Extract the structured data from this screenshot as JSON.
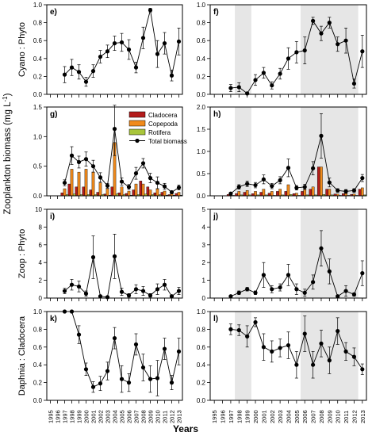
{
  "figure": {
    "xlabel": "Years",
    "years": [
      "1995",
      "1996",
      "1997",
      "1998",
      "1999",
      "2000",
      "2001",
      "2002",
      "2003",
      "2004",
      "2005",
      "2006",
      "2007",
      "2008",
      "2009",
      "2010",
      "2011",
      "2012",
      "2013"
    ],
    "colors": {
      "line": "#000000",
      "point": "#000000",
      "shade": "#e6e6e6",
      "cladocera": "#b31b1b",
      "copepoda": "#f08a1c",
      "rotifera": "#a8c53a"
    }
  },
  "chart_data": [
    {
      "id": "e",
      "panel_label": "e)",
      "type": "line",
      "ylabel": "Cyano : Phyto",
      "ylim": [
        0,
        1.0
      ],
      "yticks": [
        0.0,
        0.2,
        0.4,
        0.6,
        0.8,
        1.0
      ],
      "ytick_labels": [
        "0.0",
        "0.2",
        "0.4",
        "0.6",
        "0.8",
        "1.0"
      ],
      "shaded_years": [],
      "x": [
        1997,
        1998,
        1999,
        2000,
        2001,
        2002,
        2003,
        2004,
        2005,
        2006,
        2007,
        2008,
        2009,
        2010,
        2011,
        2012,
        2013
      ],
      "y": [
        0.22,
        0.3,
        0.25,
        0.14,
        0.26,
        0.42,
        0.48,
        0.57,
        0.58,
        0.5,
        0.3,
        0.63,
        0.94,
        0.45,
        0.57,
        0.21,
        0.59
      ],
      "err": [
        0.09,
        0.09,
        0.08,
        0.05,
        0.07,
        0.07,
        0.07,
        0.08,
        0.1,
        0.11,
        0.06,
        0.12,
        0.02,
        0.15,
        0.12,
        0.06,
        0.15
      ]
    },
    {
      "id": "f",
      "panel_label": "f)",
      "type": "line",
      "ylabel": "",
      "ylim": [
        0,
        1.0
      ],
      "yticks": [
        0.0,
        0.2,
        0.4,
        0.6,
        0.8,
        1.0
      ],
      "ytick_labels": [
        "0.0",
        "0.2",
        "0.4",
        "0.6",
        "0.8",
        "1.0"
      ],
      "shaded_years": [
        [
          1997.5,
          1999.5
        ],
        [
          2005.5,
          2012.5
        ]
      ],
      "x": [
        1997,
        1998,
        1999,
        2000,
        2001,
        2002,
        2003,
        2004,
        2005,
        2006,
        2007,
        2008,
        2009,
        2010,
        2011,
        2012,
        2013
      ],
      "y": [
        0.07,
        0.08,
        0.01,
        0.16,
        0.24,
        0.1,
        0.23,
        0.4,
        0.47,
        0.49,
        0.82,
        0.68,
        0.8,
        0.56,
        0.6,
        0.12,
        0.48
      ],
      "err": [
        0.04,
        0.05,
        0.01,
        0.06,
        0.06,
        0.04,
        0.06,
        0.12,
        0.12,
        0.15,
        0.04,
        0.08,
        0.06,
        0.08,
        0.14,
        0.05,
        0.18
      ]
    },
    {
      "id": "g",
      "panel_label": "g)",
      "type": "bar",
      "ylabel": "",
      "ylim": [
        0,
        1.5
      ],
      "yticks": [
        0.0,
        0.5,
        1.0,
        1.5
      ],
      "ytick_labels": [
        "0.0",
        "0.5",
        "1.0",
        "1.5"
      ],
      "shaded_years": [],
      "legend": [
        "Cladocera",
        "Copepoda",
        "Rotifera",
        "Total biomass"
      ],
      "x": [
        1997,
        1998,
        1999,
        2000,
        2001,
        2002,
        2003,
        2004,
        2005,
        2006,
        2007,
        2008,
        2009,
        2010,
        2011,
        2012,
        2013
      ],
      "series": [
        {
          "name": "Cladocera",
          "color": "#b31b1b",
          "values": [
            0.05,
            0.2,
            0.15,
            0.15,
            0.1,
            0.06,
            0.03,
            0.15,
            0.05,
            0.04,
            0.1,
            0.25,
            0.15,
            0.05,
            0.06,
            0.02,
            0.04
          ]
        },
        {
          "name": "Copepoda",
          "color": "#f08a1c",
          "values": [
            0.12,
            0.45,
            0.4,
            0.45,
            0.4,
            0.22,
            0.12,
            0.9,
            0.15,
            0.08,
            0.2,
            0.2,
            0.1,
            0.12,
            0.08,
            0.04,
            0.06
          ]
        },
        {
          "name": "Rotifera",
          "color": "#a8c53a",
          "values": [
            0.02,
            0.03,
            0.02,
            0.02,
            0.02,
            0.02,
            0.01,
            0.03,
            0.02,
            0.01,
            0.02,
            0.03,
            0.02,
            0.02,
            0.01,
            0.01,
            0.01
          ]
        }
      ],
      "total": {
        "name": "Total biomass",
        "y": [
          0.22,
          0.68,
          0.57,
          0.62,
          0.5,
          0.31,
          0.17,
          1.13,
          0.24,
          0.15,
          0.38,
          0.55,
          0.3,
          0.22,
          0.16,
          0.06,
          0.14
        ],
        "err": [
          0.05,
          0.15,
          0.1,
          0.12,
          0.1,
          0.08,
          0.04,
          0.45,
          0.06,
          0.04,
          0.1,
          0.08,
          0.08,
          0.1,
          0.05,
          0.02,
          0.04
        ]
      }
    },
    {
      "id": "h",
      "panel_label": "h)",
      "type": "bar",
      "ylabel": "",
      "ylim": [
        0,
        2.0
      ],
      "yticks": [
        0.0,
        0.5,
        1.0,
        1.5,
        2.0
      ],
      "ytick_labels": [
        "0.0",
        "0.5",
        "1.0",
        "1.5",
        "2.0"
      ],
      "shaded_years": [
        [
          1997.5,
          1999.5
        ],
        [
          2005.5,
          2012.5
        ]
      ],
      "x": [
        1997,
        1998,
        1999,
        2000,
        2001,
        2002,
        2003,
        2004,
        2005,
        2006,
        2007,
        2008,
        2009,
        2010,
        2011,
        2012,
        2013
      ],
      "series": [
        {
          "name": "Cladocera",
          "color": "#b31b1b",
          "values": [
            0.03,
            0.05,
            0.08,
            0.05,
            0.08,
            0.06,
            0.1,
            0.1,
            0.05,
            0.1,
            0.15,
            0.65,
            0.15,
            0.04,
            0.05,
            0.03,
            0.15
          ]
        },
        {
          "name": "Copepoda",
          "color": "#f08a1c",
          "values": [
            0.05,
            0.1,
            0.12,
            0.1,
            0.15,
            0.1,
            0.15,
            0.25,
            0.06,
            0.15,
            0.2,
            0.65,
            0.15,
            0.04,
            0.05,
            0.04,
            0.18
          ]
        },
        {
          "name": "Rotifera",
          "color": "#a8c53a",
          "values": [
            0.01,
            0.02,
            0.02,
            0.02,
            0.02,
            0.01,
            0.02,
            0.03,
            0.01,
            0.02,
            0.02,
            0.03,
            0.02,
            0.01,
            0.01,
            0.01,
            0.02
          ]
        }
      ],
      "total": {
        "name": "Total biomass",
        "y": [
          0.05,
          0.2,
          0.27,
          0.24,
          0.37,
          0.22,
          0.35,
          0.63,
          0.18,
          0.2,
          0.62,
          1.35,
          0.3,
          0.12,
          0.1,
          0.12,
          0.4
        ],
        "err": [
          0.02,
          0.05,
          0.06,
          0.06,
          0.1,
          0.06,
          0.08,
          0.2,
          0.05,
          0.06,
          0.15,
          0.5,
          0.1,
          0.04,
          0.04,
          0.04,
          0.08
        ]
      }
    },
    {
      "id": "i",
      "panel_label": "i)",
      "type": "line",
      "ylabel": "Zoop : Phyto",
      "ylim": [
        0,
        10
      ],
      "yticks": [
        0,
        2,
        4,
        6,
        8,
        10
      ],
      "ytick_labels": [
        "0",
        "2",
        "4",
        "6",
        "8",
        "10"
      ],
      "shaded_years": [],
      "x": [
        1997,
        1998,
        1999,
        2000,
        2001,
        2002,
        2003,
        2004,
        2005,
        2006,
        2007,
        2008,
        2009,
        2010,
        2011,
        2012,
        2013
      ],
      "y": [
        0.8,
        1.5,
        1.3,
        0.5,
        4.6,
        0.2,
        0.1,
        4.7,
        0.7,
        0.3,
        1.0,
        0.8,
        0.3,
        1.0,
        1.5,
        0.2,
        0.8
      ],
      "err": [
        0.3,
        0.6,
        0.6,
        0.3,
        2.4,
        0.1,
        0.05,
        2.5,
        0.4,
        0.2,
        0.5,
        0.5,
        0.2,
        0.6,
        0.6,
        0.1,
        0.4
      ]
    },
    {
      "id": "j",
      "panel_label": "j)",
      "type": "line",
      "ylabel": "",
      "ylim": [
        0,
        5
      ],
      "yticks": [
        0,
        1,
        2,
        3,
        4,
        5
      ],
      "ytick_labels": [
        "0",
        "1",
        "2",
        "3",
        "4",
        "5"
      ],
      "shaded_years": [
        [
          1997.5,
          1999.5
        ],
        [
          2005.5,
          2012.5
        ]
      ],
      "x": [
        1997,
        1998,
        1999,
        2000,
        2001,
        2002,
        2003,
        2004,
        2005,
        2006,
        2007,
        2008,
        2009,
        2010,
        2011,
        2012,
        2013
      ],
      "y": [
        0.1,
        0.3,
        0.5,
        0.3,
        1.3,
        0.5,
        0.6,
        1.3,
        0.5,
        0.3,
        0.9,
        2.8,
        1.5,
        0.1,
        0.4,
        0.2,
        1.4
      ],
      "err": [
        0.05,
        0.1,
        0.1,
        0.1,
        0.7,
        0.2,
        0.2,
        0.6,
        0.3,
        0.2,
        0.4,
        1.0,
        0.7,
        0.05,
        0.3,
        0.1,
        0.7
      ]
    },
    {
      "id": "k",
      "panel_label": "k)",
      "type": "line",
      "ylabel": "Daphnia : Cladocera",
      "ylim": [
        0,
        1.0
      ],
      "yticks": [
        0.0,
        0.2,
        0.4,
        0.6,
        0.8,
        1.0
      ],
      "ytick_labels": [
        "0.0",
        "0.2",
        "0.4",
        "0.6",
        "0.8",
        "1.0"
      ],
      "shaded_years": [],
      "x": [
        1997,
        1998,
        1999,
        2000,
        2001,
        2002,
        2003,
        2004,
        2005,
        2006,
        2007,
        2008,
        2009,
        2010,
        2011,
        2012,
        2013
      ],
      "y": [
        1.0,
        1.0,
        0.74,
        0.35,
        0.15,
        0.19,
        0.33,
        0.7,
        0.24,
        0.2,
        0.63,
        0.37,
        0.24,
        0.25,
        0.58,
        0.2,
        0.55
      ],
      "err": [
        0.0,
        0.0,
        0.1,
        0.07,
        0.06,
        0.08,
        0.1,
        0.12,
        0.15,
        0.1,
        0.12,
        0.15,
        0.15,
        0.2,
        0.12,
        0.08,
        0.15
      ]
    },
    {
      "id": "l",
      "panel_label": "l)",
      "type": "line",
      "ylabel": "",
      "ylim": [
        0,
        1.0
      ],
      "yticks": [
        0.0,
        0.2,
        0.4,
        0.6,
        0.8,
        1.0
      ],
      "ytick_labels": [
        "0.0",
        "0.2",
        "0.4",
        "0.6",
        "0.8",
        "1.0"
      ],
      "shaded_years": [
        [
          1997.5,
          1999.5
        ],
        [
          2005.5,
          2012.5
        ]
      ],
      "x": [
        1997,
        1998,
        1999,
        2000,
        2001,
        2002,
        2003,
        2004,
        2005,
        2006,
        2007,
        2008,
        2009,
        2010,
        2011,
        2012,
        2013
      ],
      "y": [
        0.8,
        0.79,
        0.72,
        0.88,
        0.6,
        0.55,
        0.59,
        0.62,
        0.4,
        0.75,
        0.4,
        0.64,
        0.45,
        0.78,
        0.55,
        0.49,
        0.35
      ],
      "err": [
        0.06,
        0.06,
        0.12,
        0.05,
        0.15,
        0.12,
        0.1,
        0.15,
        0.15,
        0.2,
        0.15,
        0.15,
        0.15,
        0.15,
        0.1,
        0.1,
        0.06
      ]
    }
  ]
}
